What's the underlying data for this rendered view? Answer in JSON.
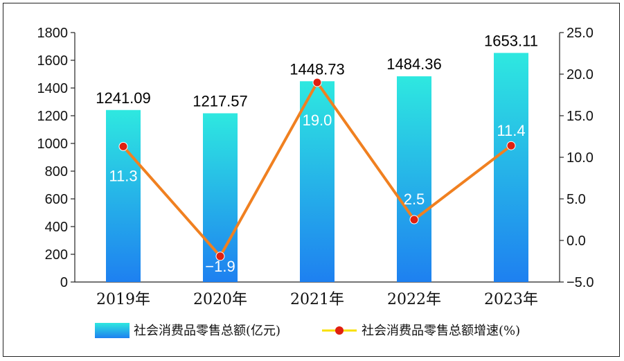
{
  "chart_data": {
    "type": "bar",
    "categories": [
      "2019年",
      "2020年",
      "2021年",
      "2022年",
      "2023年"
    ],
    "series": [
      {
        "name": "社会消费品零售总额(亿元)",
        "type": "bar",
        "axis": "left",
        "values": [
          1241.09,
          1217.57,
          1448.73,
          1484.36,
          1653.11
        ],
        "labels": [
          "1241.09",
          "1217.57",
          "1448.73",
          "1484.36",
          "1653.11"
        ]
      },
      {
        "name": "社会消费品零售总额增速(%)",
        "type": "line",
        "axis": "right",
        "values": [
          11.3,
          -1.9,
          19.0,
          2.5,
          11.4
        ],
        "labels": [
          "11.3",
          "−1.9",
          "19.0",
          "2.5",
          "11.4"
        ]
      }
    ],
    "y_left": {
      "min": 0,
      "max": 1800,
      "ticks": [
        "0",
        "200",
        "400",
        "600",
        "800",
        "1000",
        "1200",
        "1400",
        "1600",
        "1800"
      ]
    },
    "y_right": {
      "min": -5,
      "max": 25,
      "ticks": [
        "−5.0",
        "0.0",
        "5.0",
        "10.0",
        "15.0",
        "20.0",
        "25.0"
      ]
    },
    "legend_position": "bottom",
    "grid": false,
    "colors": {
      "bar_top": "#2ee8e0",
      "bar_bottom": "#1e80f0",
      "line": "#f08020",
      "marker": "#e02010",
      "legend_line": "#f8e000"
    }
  }
}
